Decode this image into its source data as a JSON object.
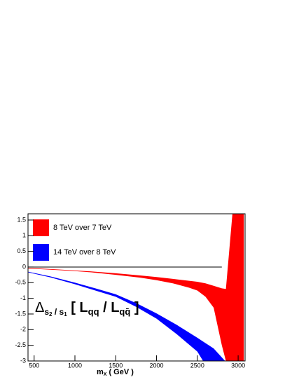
{
  "chart_data": {
    "type": "band",
    "x_label_parts": [
      "m",
      "X",
      "( GeV )"
    ],
    "annotation_parts": [
      "Δ",
      "s",
      "2",
      " / s",
      "1",
      " [ L",
      "qq",
      " / L",
      "qq̄",
      " ]"
    ],
    "xlim": [
      425,
      3085
    ],
    "xticks": [
      500,
      1000,
      1500,
      2000,
      2500,
      3000
    ],
    "ylim": [
      -3,
      1.7
    ],
    "yticks": [
      1.5,
      1,
      0.5,
      0,
      -0.5,
      -1,
      -1.5,
      -2,
      -2.5,
      -3
    ],
    "reference_line": {
      "y": 0,
      "x_end": 2800
    },
    "legend": "top-left",
    "series": [
      {
        "name": "8 TeV over 7 TeV",
        "color": "#ff0000",
        "x": [
          425,
          600,
          800,
          1000,
          1200,
          1500,
          1800,
          2000,
          2200,
          2400,
          2500,
          2600,
          2700,
          2800,
          2850,
          2930,
          3070
        ],
        "upper": [
          -0.03,
          -0.05,
          -0.08,
          -0.11,
          -0.14,
          -0.2,
          -0.27,
          -0.32,
          -0.38,
          -0.44,
          -0.47,
          -0.52,
          -0.6,
          -0.68,
          -0.7,
          1.7,
          1.7
        ],
        "lower": [
          -0.05,
          -0.07,
          -0.1,
          -0.13,
          -0.17,
          -0.25,
          -0.34,
          -0.42,
          -0.52,
          -0.66,
          -0.75,
          -0.95,
          -1.3,
          -2.5,
          -3,
          -3,
          -3
        ]
      },
      {
        "name": "14 TeV over 8 TeV",
        "color": "#0000ff",
        "x": [
          425,
          700,
          1000,
          1250,
          1500,
          1750,
          2000,
          2250,
          2500,
          2570,
          2700,
          2840
        ],
        "upper": [
          -0.15,
          -0.3,
          -0.5,
          -0.68,
          -0.87,
          -1.15,
          -1.48,
          -1.85,
          -2.26,
          -2.38,
          -2.6,
          -3
        ],
        "lower": [
          -0.17,
          -0.33,
          -0.55,
          -0.75,
          -0.95,
          -1.27,
          -1.65,
          -2.15,
          -2.7,
          -3,
          -3,
          -3
        ]
      }
    ]
  }
}
